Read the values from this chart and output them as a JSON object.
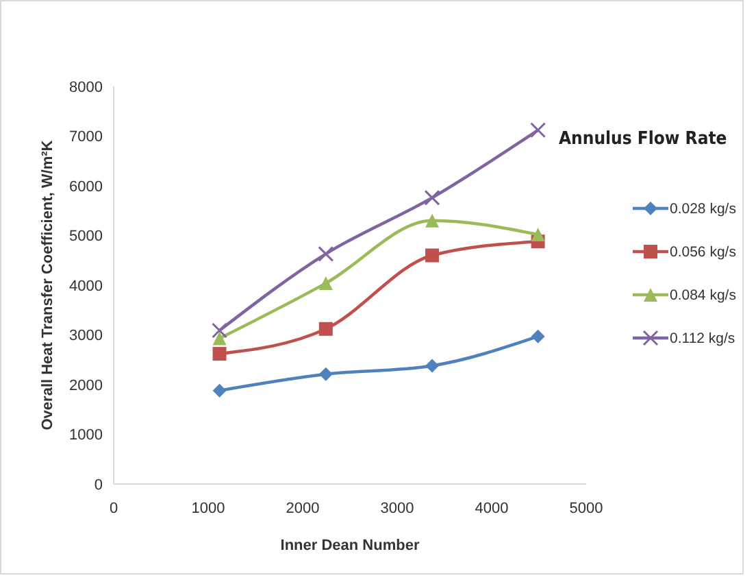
{
  "chart_data": {
    "type": "line",
    "xlabel": "Inner Dean Number",
    "ylabel": "Overall Heat Transfer Coefficient, W/m²K",
    "legend_title": "Annulus Flow Rate",
    "legend": "right",
    "grid": false,
    "line_style": "solid",
    "x": [
      1120,
      2245,
      3370,
      4490
    ],
    "xlim": [
      0,
      5000
    ],
    "xticks": [
      0,
      1000,
      2000,
      3000,
      4000,
      5000
    ],
    "ylim": [
      0,
      8000
    ],
    "yticks": [
      0,
      1000,
      2000,
      3000,
      4000,
      5000,
      6000,
      7000,
      8000
    ],
    "series": [
      {
        "name": "0.028 kg/s",
        "color": "#4f81bd",
        "marker": "diamond",
        "values": [
          1880,
          2210,
          2380,
          2970
        ]
      },
      {
        "name": "0.056 kg/s",
        "color": "#c0504d",
        "marker": "square",
        "values": [
          2620,
          3120,
          4600,
          4880
        ]
      },
      {
        "name": "0.084 kg/s",
        "color": "#9bbb59",
        "marker": "triangle",
        "values": [
          2930,
          4040,
          5300,
          5020
        ]
      },
      {
        "name": "0.112 kg/s",
        "color": "#8064a2",
        "marker": "cross",
        "values": [
          3090,
          4630,
          5760,
          7120
        ]
      }
    ]
  }
}
